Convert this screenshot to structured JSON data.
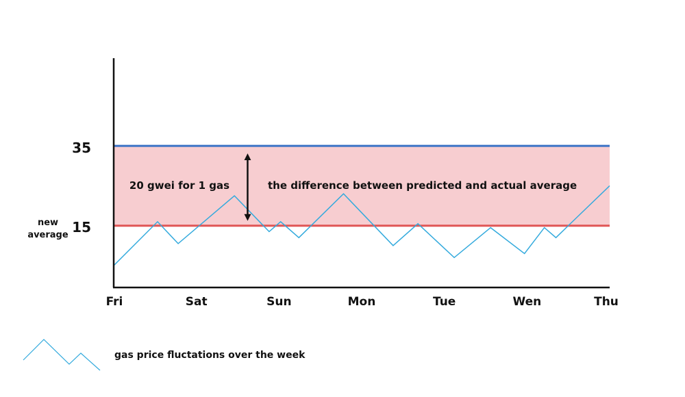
{
  "chart_data": {
    "type": "line",
    "title": "",
    "xlabel": "",
    "ylabel": "",
    "categories": [
      "Fri",
      "Sat",
      "Sun",
      "Mon",
      "Tue",
      "Wen",
      "Thu"
    ],
    "y_ticks": [
      {
        "value": 35,
        "label": "35"
      },
      {
        "value": 15,
        "label": "15"
      }
    ],
    "ylim": [
      -0.5,
      57
    ],
    "grid": false,
    "series": [
      {
        "name": "gas price fluctations over the week",
        "color": "#33aadd",
        "x": [
          0,
          0.53,
          0.78,
          1.46,
          1.88,
          2.02,
          2.24,
          2.78,
          3.38,
          3.68,
          4.12,
          4.56,
          4.97,
          5.21,
          5.35,
          5.6,
          6.0
        ],
        "y": [
          5,
          16,
          10.5,
          22.5,
          13.5,
          16,
          12,
          23,
          10,
          15.5,
          7,
          14.5,
          8,
          14.5,
          12,
          17,
          25
        ]
      }
    ],
    "bands": [
      {
        "from": 15,
        "to": 35,
        "color": "#f7cdd0"
      }
    ],
    "reference_lines": [
      {
        "value": 35,
        "color": "#3a73c6"
      },
      {
        "value": 15,
        "color": "#e05656",
        "label_line1": "new",
        "label_line2": "average"
      }
    ],
    "annotations": {
      "gap_label": "20 gwei for 1 gas",
      "band_label": "the difference between predicted and actual average",
      "arrow_from": 35,
      "arrow_to": 15,
      "arrow_x": 1.62
    },
    "legend": {
      "position": "bottom-left",
      "label": "gas price fluctations over the week"
    }
  }
}
